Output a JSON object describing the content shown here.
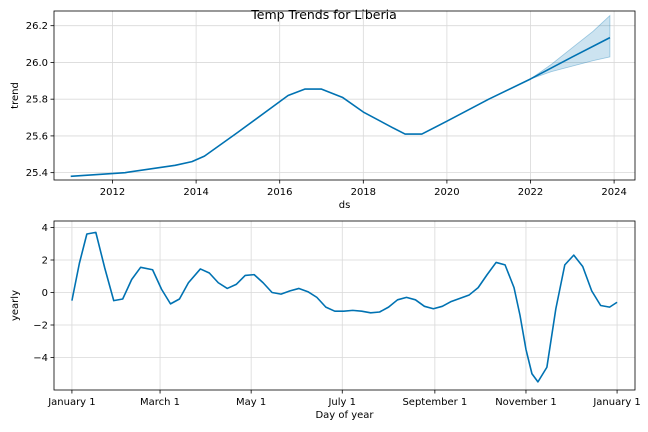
{
  "title": "Temp Trends for Liberia",
  "chart_data": [
    {
      "type": "line",
      "xlabel": "ds",
      "ylabel": "trend",
      "xlim": [
        2010.6,
        2024.5
      ],
      "ylim": [
        25.36,
        26.28
      ],
      "grid": true,
      "x_ticks": [
        2012,
        2014,
        2016,
        2018,
        2020,
        2022,
        2024
      ],
      "x_tick_labels": [
        "2012",
        "2014",
        "2016",
        "2018",
        "2020",
        "2022",
        "2024"
      ],
      "y_ticks": [
        25.4,
        25.6,
        25.8,
        26.0,
        26.2
      ],
      "y_tick_labels": [
        "25.4",
        "25.6",
        "25.8",
        "26.0",
        "26.2"
      ],
      "series": [
        {
          "color": "#0072B2",
          "x": [
            2011.0,
            2012.3,
            2013.5,
            2013.9,
            2014.2,
            2015.0,
            2016.2,
            2016.6,
            2017.0,
            2017.5,
            2018.0,
            2018.7,
            2019.0,
            2019.4,
            2020.0,
            2021.0,
            2022.0,
            2022.5,
            2023.0,
            2023.9
          ],
          "y": [
            25.38,
            25.4,
            25.44,
            25.46,
            25.49,
            25.62,
            25.82,
            25.855,
            25.855,
            25.81,
            25.73,
            25.645,
            25.61,
            25.61,
            25.68,
            25.8,
            25.91,
            25.97,
            26.03,
            26.135
          ]
        }
      ],
      "uncertainty_band": {
        "color": "#0072B2",
        "x": [
          2022.0,
          2022.5,
          2023.0,
          2023.5,
          2023.9
        ],
        "lower": [
          25.91,
          25.95,
          25.98,
          26.01,
          26.03
        ],
        "upper": [
          25.91,
          25.99,
          26.08,
          26.17,
          26.255
        ]
      }
    },
    {
      "type": "line",
      "xlabel": "Day of year",
      "ylabel": "yearly",
      "xlim": [
        -12,
        377
      ],
      "ylim": [
        -6.0,
        4.4
      ],
      "grid": true,
      "x_ticks": [
        0,
        59,
        120,
        181,
        243,
        304,
        365
      ],
      "x_tick_labels": [
        "January 1",
        "March 1",
        "May 1",
        "July 1",
        "September 1",
        "November 1",
        "January 1"
      ],
      "y_ticks": [
        -4,
        -2,
        0,
        2,
        4
      ],
      "y_tick_labels": [
        "−4",
        "−2",
        "0",
        "2",
        "4"
      ],
      "series": [
        {
          "color": "#0072B2",
          "x": [
            0,
            5,
            10,
            16,
            22,
            28,
            34,
            40,
            46,
            54,
            60,
            66,
            72,
            78,
            86,
            92,
            98,
            104,
            110,
            116,
            122,
            128,
            134,
            140,
            146,
            152,
            158,
            164,
            170,
            176,
            182,
            188,
            194,
            200,
            206,
            212,
            218,
            224,
            230,
            236,
            242,
            248,
            254,
            260,
            266,
            272,
            278,
            284,
            290,
            296,
            300,
            304,
            308,
            312,
            318,
            324,
            330,
            336,
            342,
            348,
            354,
            360,
            365
          ],
          "y": [
            -0.5,
            1.8,
            3.6,
            3.7,
            1.5,
            -0.5,
            -0.4,
            0.8,
            1.55,
            1.4,
            0.2,
            -0.7,
            -0.4,
            0.6,
            1.45,
            1.2,
            0.6,
            0.25,
            0.5,
            1.05,
            1.1,
            0.6,
            0.0,
            -0.1,
            0.1,
            0.25,
            0.05,
            -0.3,
            -0.9,
            -1.15,
            -1.15,
            -1.1,
            -1.15,
            -1.25,
            -1.2,
            -0.9,
            -0.45,
            -0.3,
            -0.45,
            -0.85,
            -1.0,
            -0.85,
            -0.55,
            -0.35,
            -0.15,
            0.3,
            1.1,
            1.85,
            1.7,
            0.3,
            -1.4,
            -3.5,
            -5.0,
            -5.5,
            -4.6,
            -1.0,
            1.7,
            2.3,
            1.6,
            0.1,
            -0.8,
            -0.9,
            -0.6
          ]
        }
      ]
    }
  ]
}
